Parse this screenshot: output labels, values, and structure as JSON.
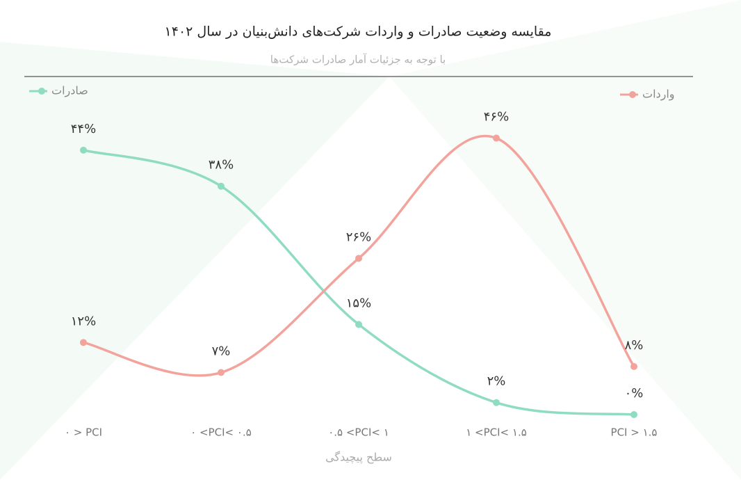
{
  "chart_data": {
    "type": "line",
    "title": "مقایسه وضعیت صادرات و واردات شرکت‌های دانش‌بنیان در سال ۱۴۰۲",
    "subtitle": "با توجه به جزئیات آمار صادرات شرکت‌ها",
    "x_label": "سطح پیچیدگی",
    "categories": [
      "۰ > PCI",
      "۰ <PCI< ۰.۵",
      "۰.۵ <PCI< ۱",
      "۱ <PCI< ۱.۵",
      "PCI > ۱.۵"
    ],
    "ylim": [
      0,
      50
    ],
    "series": [
      {
        "name": "صادرات",
        "color": "#8fdcc3",
        "values": [
          44,
          38,
          15,
          2,
          0
        ],
        "value_labels": [
          "۴۴%",
          "۳۸%",
          "۱۵%",
          "۲%",
          "۰%"
        ]
      },
      {
        "name": "واردات",
        "color": "#f2a49c",
        "values": [
          12,
          7,
          26,
          46,
          8
        ],
        "value_labels": [
          "۱۲%",
          "۷%",
          "۲۶%",
          "۴۶%",
          "۸%"
        ]
      }
    ]
  }
}
